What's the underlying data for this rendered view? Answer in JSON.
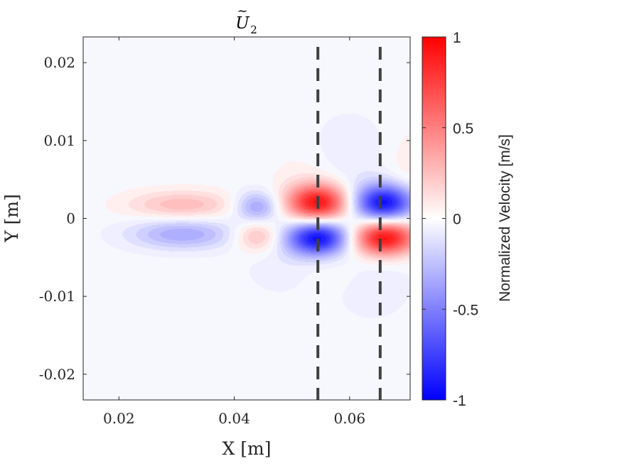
{
  "chart_data": {
    "type": "heatmap",
    "title_base": "U",
    "title_tilde": "~",
    "title_sub": "2",
    "xlabel": "X [m]",
    "ylabel": "Y [m]",
    "xlim": [
      0.0138,
      0.0705
    ],
    "ylim": [
      -0.0233,
      0.0233
    ],
    "xticks": [
      0.02,
      0.04,
      0.06
    ],
    "xtick_labels": [
      "0.02",
      "0.04",
      "0.06"
    ],
    "yticks": [
      -0.02,
      -0.01,
      0,
      0.01,
      0.02
    ],
    "ytick_labels": [
      "-0.02",
      "-0.01",
      "0",
      "0.01",
      "0.02"
    ],
    "colorbar": {
      "label": "Normalized Velocity [m/s]",
      "range": [
        -1,
        1
      ],
      "ticks": [
        -1,
        -0.5,
        0,
        0.5,
        1
      ],
      "tick_labels": [
        "-1",
        "-0.5",
        "0",
        "0.5",
        "1"
      ],
      "colormap": [
        "#0000ff",
        "#ffffff",
        "#ff0000"
      ]
    },
    "reference_lines": [
      {
        "x": 0.0545,
        "style": "dashed",
        "color": "#404040"
      },
      {
        "x": 0.0653,
        "style": "dashed",
        "color": "#404040"
      }
    ],
    "field_components": [
      {
        "x": 0.0545,
        "y": 0.002,
        "sx": 0.0038,
        "sy": 0.0017,
        "amplitude": 0.95
      },
      {
        "x": 0.0545,
        "y": -0.0025,
        "sx": 0.0038,
        "sy": 0.0016,
        "amplitude": -0.95
      },
      {
        "x": 0.066,
        "y": 0.002,
        "sx": 0.0038,
        "sy": 0.0017,
        "amplitude": -0.95
      },
      {
        "x": 0.066,
        "y": -0.0025,
        "sx": 0.0038,
        "sy": 0.0016,
        "amplitude": 0.97
      },
      {
        "x": 0.044,
        "y": 0.0015,
        "sx": 0.0028,
        "sy": 0.0014,
        "amplitude": -0.38
      },
      {
        "x": 0.044,
        "y": -0.0023,
        "sx": 0.0028,
        "sy": 0.0014,
        "amplitude": 0.3
      },
      {
        "x": 0.031,
        "y": 0.0017,
        "sx": 0.0065,
        "sy": 0.0013,
        "amplitude": 0.27
      },
      {
        "x": 0.031,
        "y": -0.002,
        "sx": 0.0065,
        "sy": 0.0014,
        "amplitude": -0.34
      },
      {
        "x": 0.06,
        "y": 0.008,
        "sx": 0.005,
        "sy": 0.004,
        "amplitude": -0.08
      },
      {
        "x": 0.064,
        "y": -0.008,
        "sx": 0.005,
        "sy": 0.0035,
        "amplitude": -0.08
      },
      {
        "x": 0.052,
        "y": 0.006,
        "sx": 0.004,
        "sy": 0.0025,
        "amplitude": 0.05
      },
      {
        "x": 0.048,
        "y": -0.006,
        "sx": 0.005,
        "sy": 0.003,
        "amplitude": -0.06
      },
      {
        "x": 0.07,
        "y": 0.006,
        "sx": 0.0025,
        "sy": 0.004,
        "amplitude": 0.08
      },
      {
        "x": 0.058,
        "y": -0.0065,
        "sx": 0.004,
        "sy": 0.002,
        "amplitude": 0.05
      }
    ]
  }
}
